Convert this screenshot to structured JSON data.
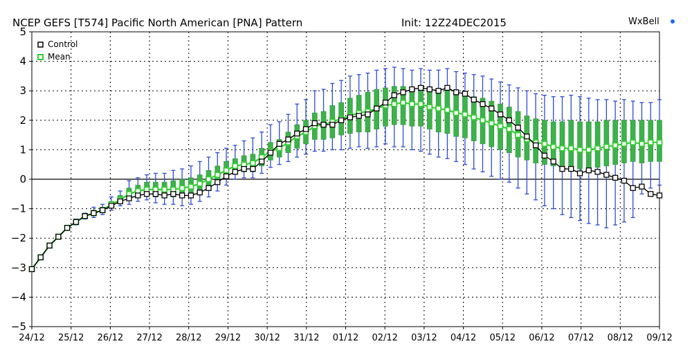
{
  "header": {
    "title": "NCEP GEFS [T574] Pacific North American [PNA] Pattern",
    "init": "Init: 12Z24DEC2015",
    "brand_main": "WxBell",
    "brand_dot_color": "#1a66ff"
  },
  "chart_data": {
    "type": "line",
    "title": "NCEP GEFS [T574] Pacific North American [PNA] Pattern",
    "xlabel": "",
    "ylabel": "",
    "ylim": [
      -5,
      5
    ],
    "xlim": [
      0,
      16
    ],
    "x_unit_note": "days after 24/12",
    "y_ticks": [
      -5,
      -4,
      -3,
      -2,
      -1,
      0,
      1,
      2,
      3,
      4,
      5
    ],
    "x_ticks": [
      "24/12",
      "25/12",
      "26/12",
      "27/12",
      "28/12",
      "29/12",
      "30/12",
      "31/12",
      "01/12",
      "02/12",
      "03/12",
      "04/12",
      "05/12",
      "06/12",
      "07/12",
      "08/12",
      "09/12"
    ],
    "grid": true,
    "legend_position": "top-left",
    "series": [
      {
        "name": "Control",
        "color": "#000000",
        "values": [
          -3.05,
          -2.65,
          -2.25,
          -1.95,
          -1.65,
          -1.45,
          -1.25,
          -1.15,
          -1.05,
          -0.9,
          -0.75,
          -0.65,
          -0.55,
          -0.5,
          -0.5,
          -0.55,
          -0.5,
          -0.55,
          -0.55,
          -0.45,
          -0.3,
          -0.1,
          0.1,
          0.25,
          0.35,
          0.35,
          0.6,
          0.9,
          1.2,
          1.35,
          1.55,
          1.7,
          1.9,
          1.85,
          1.85,
          2.0,
          2.1,
          2.15,
          2.2,
          2.4,
          2.6,
          2.85,
          2.95,
          3.05,
          3.1,
          3.05,
          3.0,
          3.1,
          2.95,
          2.9,
          2.7,
          2.55,
          2.4,
          2.2,
          2.0,
          1.75,
          1.45,
          1.15,
          0.8,
          0.6,
          0.35,
          0.35,
          0.2,
          0.3,
          0.25,
          0.15,
          0.05,
          -0.05,
          -0.3,
          -0.25,
          -0.5,
          -0.55
        ]
      },
      {
        "name": "Mean",
        "color": "#33cc33",
        "values": [
          -3.05,
          -2.65,
          -2.25,
          -1.95,
          -1.65,
          -1.45,
          -1.25,
          -1.15,
          -1.05,
          -0.85,
          -0.7,
          -0.5,
          -0.4,
          -0.35,
          -0.35,
          -0.35,
          -0.35,
          -0.3,
          -0.25,
          -0.15,
          0.0,
          0.15,
          0.3,
          0.45,
          0.5,
          0.55,
          0.75,
          0.95,
          1.05,
          1.25,
          1.45,
          1.6,
          1.8,
          1.85,
          1.95,
          2.05,
          2.15,
          2.25,
          2.3,
          2.4,
          2.5,
          2.55,
          2.6,
          2.55,
          2.55,
          2.45,
          2.4,
          2.35,
          2.25,
          2.2,
          2.1,
          2.0,
          1.9,
          1.8,
          1.7,
          1.5,
          1.35,
          1.25,
          1.2,
          1.1,
          1.05,
          1.05,
          1.0,
          1.0,
          1.05,
          1.1,
          1.15,
          1.2,
          1.25,
          1.2,
          1.25,
          1.25
        ]
      }
    ],
    "box_q_low": [
      -3.05,
      -2.65,
      -2.25,
      -1.95,
      -1.65,
      -1.5,
      -1.3,
      -1.2,
      -1.1,
      -0.95,
      -0.8,
      -0.7,
      -0.6,
      -0.55,
      -0.6,
      -0.6,
      -0.6,
      -0.6,
      -0.55,
      -0.45,
      -0.3,
      -0.1,
      0.05,
      0.2,
      0.25,
      0.25,
      0.45,
      0.65,
      0.75,
      0.9,
      1.05,
      1.2,
      1.35,
      1.35,
      1.4,
      1.5,
      1.55,
      1.6,
      1.6,
      1.7,
      1.8,
      1.85,
      1.85,
      1.8,
      1.8,
      1.7,
      1.6,
      1.55,
      1.45,
      1.4,
      1.3,
      1.2,
      1.1,
      1.0,
      0.9,
      0.75,
      0.65,
      0.55,
      0.5,
      0.45,
      0.4,
      0.4,
      0.35,
      0.35,
      0.4,
      0.45,
      0.5,
      0.55,
      0.6,
      0.55,
      0.6,
      0.6
    ],
    "box_q_high": [
      -3.05,
      -2.65,
      -2.25,
      -1.95,
      -1.65,
      -1.4,
      -1.2,
      -1.05,
      -0.95,
      -0.75,
      -0.55,
      -0.3,
      -0.2,
      -0.1,
      -0.1,
      -0.1,
      -0.05,
      0.0,
      0.05,
      0.15,
      0.3,
      0.45,
      0.6,
      0.7,
      0.8,
      0.85,
      1.05,
      1.25,
      1.35,
      1.6,
      1.85,
      2.0,
      2.25,
      2.3,
      2.5,
      2.6,
      2.75,
      2.85,
      2.95,
      3.05,
      3.1,
      3.15,
      3.15,
      3.1,
      3.1,
      3.05,
      3.0,
      3.0,
      2.95,
      2.9,
      2.8,
      2.75,
      2.65,
      2.55,
      2.45,
      2.3,
      2.15,
      2.05,
      2.0,
      1.95,
      1.95,
      2.0,
      1.95,
      1.95,
      1.95,
      2.0,
      2.0,
      2.0,
      2.0,
      2.0,
      2.0,
      2.0
    ],
    "whisker_low": [
      -3.05,
      -2.65,
      -2.25,
      -1.95,
      -1.65,
      -1.55,
      -1.35,
      -1.3,
      -1.2,
      -1.05,
      -0.9,
      -0.85,
      -0.75,
      -0.7,
      -0.8,
      -0.85,
      -0.85,
      -0.9,
      -0.85,
      -0.75,
      -0.6,
      -0.4,
      -0.2,
      0.0,
      0.05,
      0.05,
      0.2,
      0.4,
      0.5,
      0.6,
      0.75,
      0.85,
      0.95,
      0.95,
      1.0,
      1.0,
      1.05,
      1.1,
      1.05,
      1.1,
      1.2,
      1.1,
      1.1,
      1.0,
      0.95,
      0.85,
      0.75,
      0.7,
      0.6,
      0.5,
      0.35,
      0.25,
      0.1,
      0.0,
      -0.1,
      -0.3,
      -0.5,
      -0.7,
      -0.9,
      -1.0,
      -1.2,
      -1.3,
      -1.4,
      -1.5,
      -1.55,
      -1.65,
      -1.55,
      -1.45,
      -1.3,
      -0.5,
      -0.3,
      -0.2
    ],
    "whisker_high": [
      -3.05,
      -2.65,
      -2.25,
      -1.95,
      -1.65,
      -1.35,
      -1.15,
      -0.95,
      -0.85,
      -0.6,
      -0.4,
      -0.05,
      0.05,
      0.15,
      0.2,
      0.2,
      0.3,
      0.35,
      0.45,
      0.6,
      0.75,
      0.9,
      1.05,
      1.15,
      1.3,
      1.4,
      1.6,
      1.85,
      1.95,
      2.2,
      2.55,
      2.7,
      3.0,
      3.05,
      3.25,
      3.35,
      3.5,
      3.55,
      3.6,
      3.7,
      3.75,
      3.8,
      3.75,
      3.7,
      3.75,
      3.7,
      3.7,
      3.75,
      3.65,
      3.6,
      3.55,
      3.5,
      3.4,
      3.3,
      3.2,
      3.1,
      3.0,
      2.9,
      2.85,
      2.8,
      2.8,
      2.85,
      2.8,
      2.75,
      2.7,
      2.7,
      2.65,
      2.7,
      2.65,
      2.6,
      2.6,
      2.7
    ],
    "legend": [
      "Control",
      "Mean"
    ]
  }
}
